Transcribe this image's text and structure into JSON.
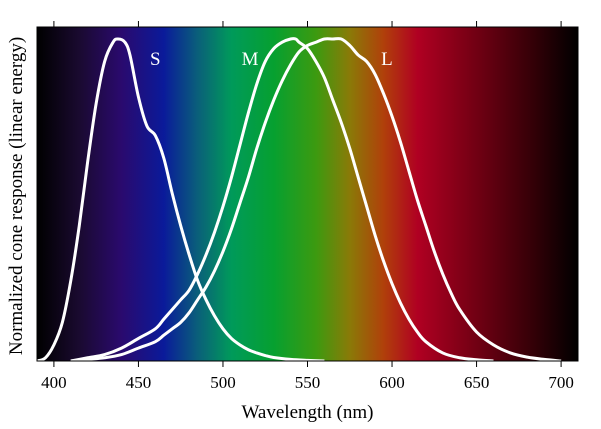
{
  "chart_data": {
    "type": "line",
    "title": "",
    "xlabel": "Wavelength (nm)",
    "ylabel": "Normalized cone response (linear energy)",
    "xlim": [
      390,
      710
    ],
    "ylim": [
      0,
      1.0
    ],
    "grid": false,
    "background": "visible spectrum color gradient",
    "xticks": [
      400,
      450,
      500,
      550,
      600,
      650,
      700
    ],
    "spectrum_stops": [
      {
        "wavelength": 390,
        "color": "#000000"
      },
      {
        "wavelength": 415,
        "color": "#1a0a30"
      },
      {
        "wavelength": 440,
        "color": "#2a0a6e"
      },
      {
        "wavelength": 465,
        "color": "#0a1a9a"
      },
      {
        "wavelength": 485,
        "color": "#0a5f7a"
      },
      {
        "wavelength": 505,
        "color": "#009a5a"
      },
      {
        "wavelength": 530,
        "color": "#06a030"
      },
      {
        "wavelength": 555,
        "color": "#3c9a10"
      },
      {
        "wavelength": 575,
        "color": "#8a7a08"
      },
      {
        "wavelength": 595,
        "color": "#b0400a"
      },
      {
        "wavelength": 615,
        "color": "#b00022"
      },
      {
        "wavelength": 645,
        "color": "#7a0015"
      },
      {
        "wavelength": 680,
        "color": "#3a0008"
      },
      {
        "wavelength": 710,
        "color": "#000000"
      }
    ],
    "series": [
      {
        "name": "S",
        "color": "#ffffff",
        "x": [
          390,
          395,
          400,
          405,
          410,
          415,
          420,
          425,
          430,
          435,
          438,
          442,
          445,
          450,
          455,
          460,
          465,
          470,
          475,
          480,
          485,
          490,
          495,
          500,
          505,
          510,
          515,
          520,
          525,
          530,
          540,
          550,
          560
        ],
        "values": [
          0.0,
          0.01,
          0.05,
          0.12,
          0.25,
          0.42,
          0.62,
          0.8,
          0.93,
          0.99,
          1.0,
          0.99,
          0.95,
          0.82,
          0.73,
          0.7,
          0.63,
          0.52,
          0.42,
          0.33,
          0.25,
          0.19,
          0.14,
          0.1,
          0.07,
          0.05,
          0.035,
          0.025,
          0.017,
          0.011,
          0.005,
          0.002,
          0.0
        ]
      },
      {
        "name": "M",
        "color": "#ffffff",
        "x": [
          410,
          420,
          430,
          440,
          450,
          460,
          465,
          470,
          475,
          480,
          485,
          490,
          495,
          500,
          505,
          510,
          515,
          520,
          525,
          530,
          535,
          540,
          543,
          545,
          550,
          555,
          560,
          565,
          570,
          575,
          580,
          585,
          590,
          595,
          600,
          605,
          610,
          615,
          620,
          630,
          640,
          650,
          660
        ],
        "values": [
          0.0,
          0.01,
          0.02,
          0.04,
          0.07,
          0.1,
          0.13,
          0.16,
          0.19,
          0.22,
          0.27,
          0.33,
          0.4,
          0.48,
          0.57,
          0.67,
          0.77,
          0.86,
          0.93,
          0.97,
          0.99,
          1.0,
          1.0,
          0.99,
          0.97,
          0.93,
          0.88,
          0.81,
          0.74,
          0.66,
          0.57,
          0.48,
          0.39,
          0.31,
          0.24,
          0.18,
          0.13,
          0.09,
          0.06,
          0.025,
          0.01,
          0.004,
          0.0
        ]
      },
      {
        "name": "L",
        "color": "#ffffff",
        "x": [
          410,
          420,
          430,
          440,
          450,
          460,
          465,
          470,
          475,
          480,
          485,
          490,
          495,
          500,
          505,
          510,
          515,
          520,
          525,
          530,
          535,
          540,
          545,
          550,
          555,
          560,
          565,
          570,
          575,
          580,
          585,
          590,
          595,
          600,
          605,
          610,
          615,
          620,
          625,
          630,
          635,
          640,
          650,
          660,
          670,
          680,
          690,
          700
        ],
        "values": [
          0.0,
          0.005,
          0.01,
          0.02,
          0.04,
          0.06,
          0.08,
          0.1,
          0.12,
          0.15,
          0.19,
          0.23,
          0.28,
          0.34,
          0.41,
          0.49,
          0.57,
          0.66,
          0.74,
          0.81,
          0.87,
          0.92,
          0.96,
          0.98,
          0.99,
          1.0,
          1.0,
          1.0,
          0.98,
          0.95,
          0.93,
          0.89,
          0.83,
          0.76,
          0.68,
          0.59,
          0.5,
          0.42,
          0.34,
          0.27,
          0.21,
          0.16,
          0.09,
          0.05,
          0.025,
          0.012,
          0.005,
          0.0
        ]
      }
    ],
    "annotations": [
      {
        "text": "S",
        "x": 460,
        "y": 0.92
      },
      {
        "text": "M",
        "x": 516,
        "y": 0.92
      },
      {
        "text": "L",
        "x": 597,
        "y": 0.92
      }
    ]
  }
}
